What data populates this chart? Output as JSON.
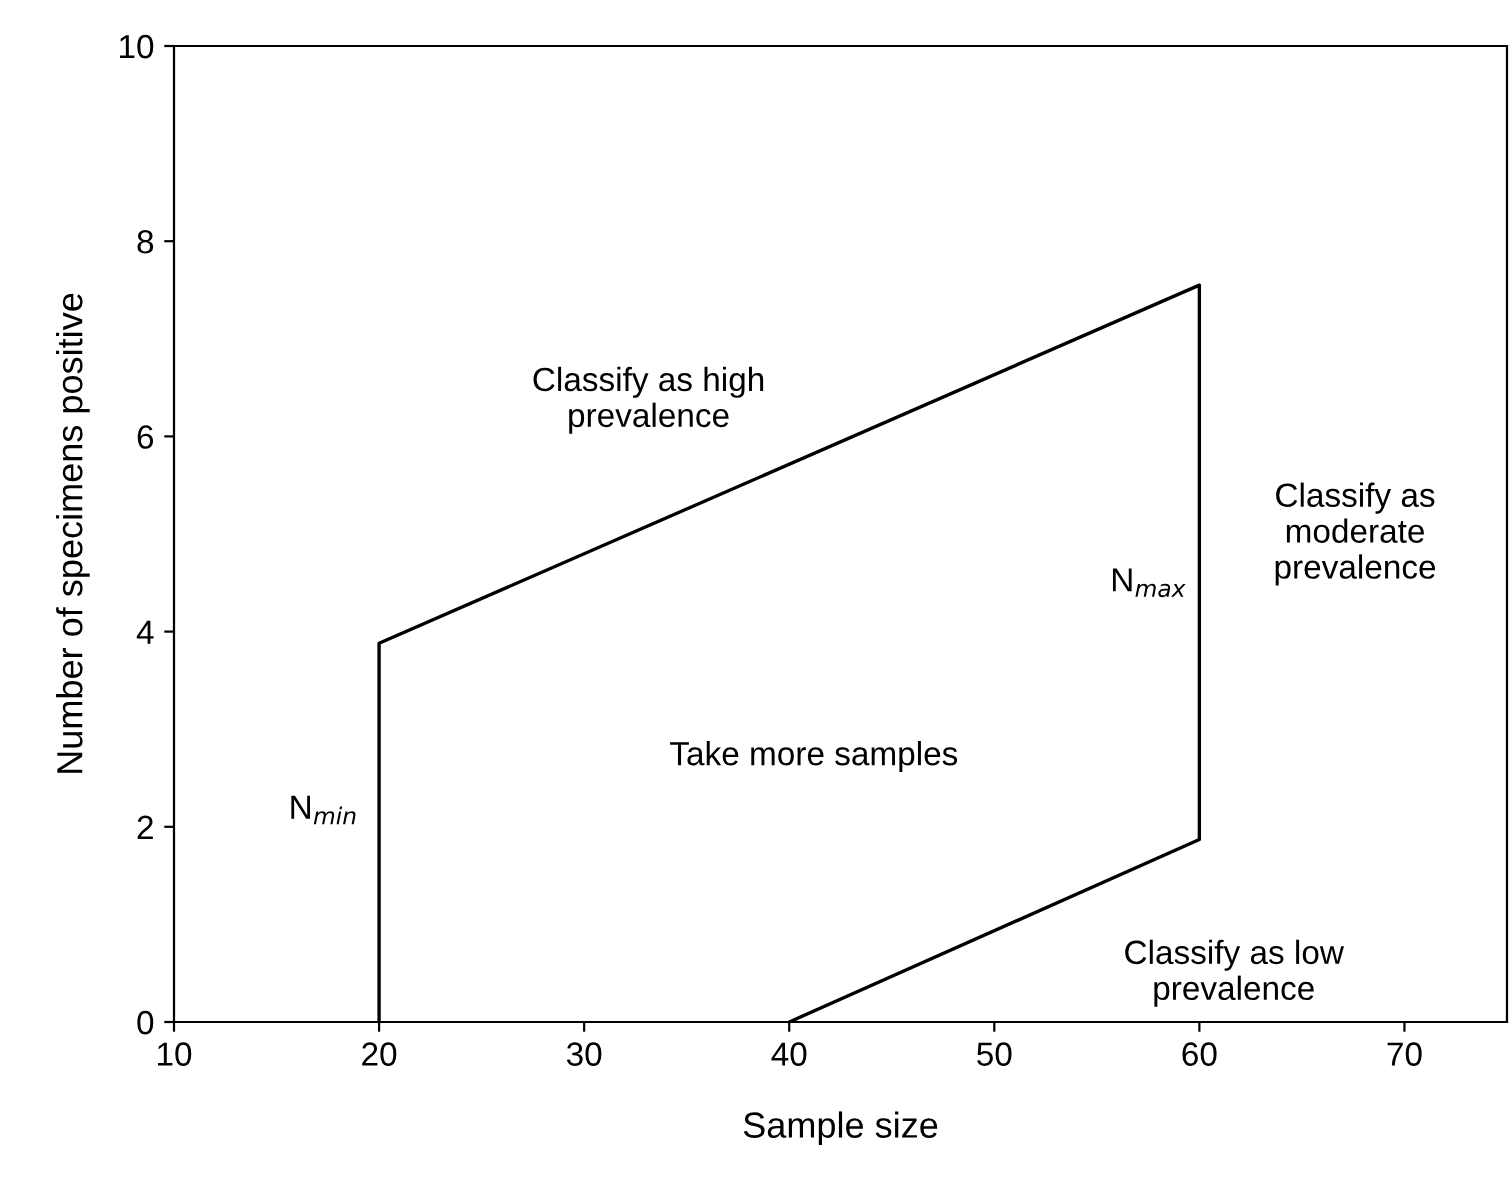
{
  "chart_data": {
    "type": "line",
    "xlabel": "Sample size",
    "ylabel": "Number of specimens positive",
    "series": [
      {
        "color": "#000000",
        "x": [
          20,
          20,
          60,
          60,
          40
        ],
        "values": [
          0,
          3.88,
          7.55,
          1.87,
          0
        ]
      }
    ],
    "xlim": [
      10,
      75
    ],
    "xticks": [
      10,
      20,
      30,
      40,
      50,
      60,
      70
    ],
    "ylim": [
      0,
      10
    ],
    "yticks": [
      0,
      2,
      4,
      6,
      8,
      10
    ],
    "grid": false,
    "legend": false,
    "marker": "none",
    "line_style": "solid",
    "annotations": [
      "Classify as high\nprevalence",
      "Take more samples",
      "N$_{max}$",
      "N$_{min}$",
      "Classify as\nmoderate\nprevalence",
      "Classify as low\nprevalence"
    ]
  }
}
